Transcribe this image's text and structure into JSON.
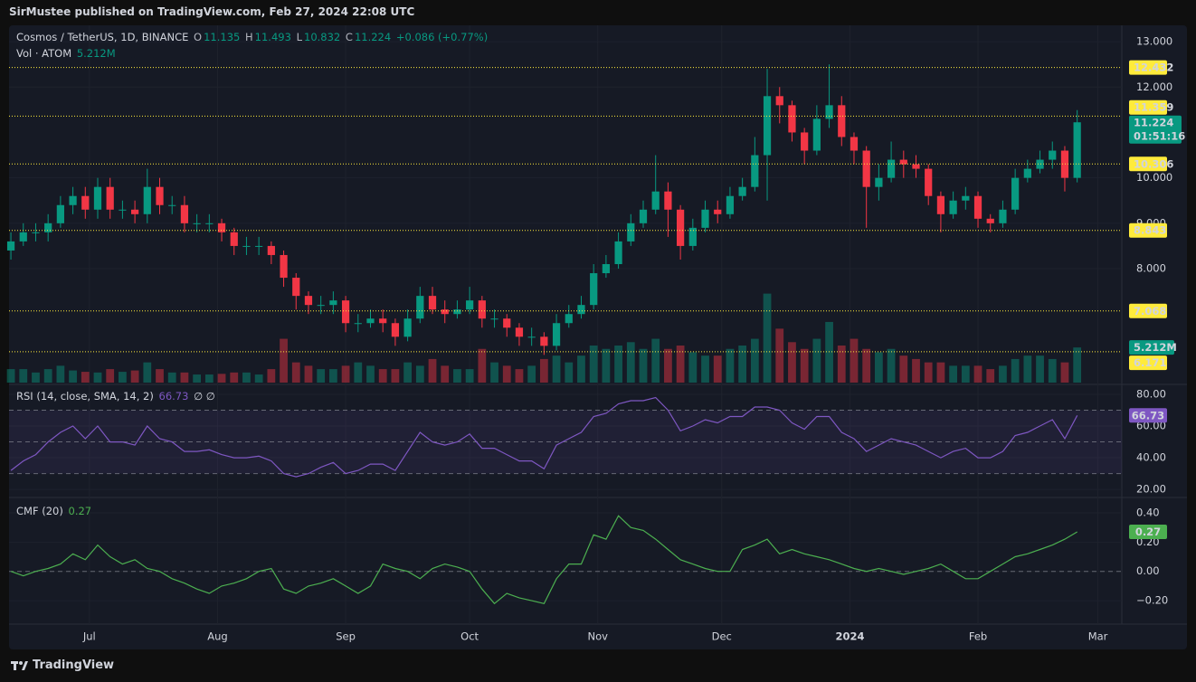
{
  "header": {
    "published": "SirMustee published on TradingView.com, Feb 27, 2024 22:08 UTC"
  },
  "footer": "TradingView",
  "chart_data": [
    {
      "type": "candlestick",
      "legend": {
        "symbol": "Cosmos / TetherUS, 1D, BINANCE",
        "o_label": "O",
        "open": 11.135,
        "h_label": "H",
        "high": 11.493,
        "l_label": "L",
        "low": 10.832,
        "c_label": "C",
        "close": 11.224,
        "change": "+0.086 (+0.77%)",
        "volume_title": "Vol · ATOM",
        "volume_label": "5.212M"
      },
      "countdown": "01:51:16",
      "up_color": "#089981",
      "down_color": "#f23645",
      "level_color": "#ffeb3b",
      "grid": true,
      "xlim": [
        -0.15,
        89.6
      ],
      "xticks": [
        {
          "value": 6.33,
          "label": "Jul"
        },
        {
          "value": 16.67,
          "label": "Aug"
        },
        {
          "value": 27,
          "label": "Sep"
        },
        {
          "value": 37,
          "label": "Oct"
        },
        {
          "value": 47.33,
          "label": "Nov"
        },
        {
          "value": 57.33,
          "label": "Dec"
        },
        {
          "value": 67.67,
          "label": "2024"
        },
        {
          "value": 78,
          "label": "Feb"
        },
        {
          "value": 87.67,
          "label": "Mar"
        }
      ],
      "ylim": [
        5.45,
        13.36
      ],
      "yticks": [
        {
          "value": 13,
          "label": "13.000"
        },
        {
          "value": 12,
          "label": "12.000"
        },
        {
          "value": 10,
          "label": "10.000"
        },
        {
          "value": 9,
          "label": "9.000"
        },
        {
          "value": 8,
          "label": "8.000"
        }
      ],
      "levels": [
        12.432,
        11.359,
        10.306,
        8.843,
        7.068,
        6.171
      ],
      "volume_ylim": [
        0,
        53
      ],
      "open": [
        8.4,
        8.6,
        8.8,
        8.8,
        9.0,
        9.4,
        9.6,
        9.3,
        9.8,
        9.3,
        9.3,
        9.2,
        9.8,
        9.4,
        9.4,
        9.0,
        9.0,
        9.0,
        8.8,
        8.5,
        8.5,
        8.5,
        8.3,
        7.8,
        7.4,
        7.2,
        7.2,
        7.3,
        6.8,
        6.8,
        6.9,
        6.8,
        6.5,
        6.9,
        7.4,
        7.1,
        7.0,
        7.1,
        7.3,
        6.9,
        6.9,
        6.7,
        6.5,
        6.5,
        6.3,
        6.8,
        7.0,
        7.2,
        7.9,
        8.1,
        8.6,
        9.0,
        9.3,
        9.7,
        9.3,
        8.5,
        8.9,
        9.3,
        9.2,
        9.6,
        9.8,
        10.5,
        11.8,
        11.6,
        11.0,
        10.6,
        11.3,
        11.6,
        10.9,
        10.6,
        9.8,
        10.0,
        10.4,
        10.3,
        10.2,
        9.6,
        9.2,
        9.5,
        9.6,
        9.1,
        9.0,
        9.3,
        10.0,
        10.2,
        10.4,
        10.6,
        10.0
      ],
      "high": [
        8.8,
        9.0,
        9.0,
        9.2,
        9.6,
        9.8,
        9.8,
        10.0,
        10.0,
        9.5,
        9.5,
        10.2,
        10.0,
        9.6,
        9.6,
        9.2,
        9.2,
        9.1,
        8.9,
        8.7,
        8.7,
        8.6,
        8.4,
        7.9,
        7.5,
        7.4,
        7.5,
        7.4,
        7.0,
        7.1,
        7.1,
        6.9,
        7.1,
        7.6,
        7.6,
        7.3,
        7.3,
        7.6,
        7.4,
        7.1,
        7.0,
        6.8,
        6.7,
        6.6,
        7.0,
        7.2,
        7.4,
        8.1,
        8.3,
        8.8,
        9.2,
        9.5,
        10.5,
        9.9,
        9.4,
        9.1,
        9.5,
        9.5,
        9.8,
        10.0,
        10.9,
        12.4,
        12.0,
        11.7,
        11.1,
        11.6,
        12.5,
        11.8,
        11.0,
        10.7,
        10.3,
        10.8,
        10.6,
        10.5,
        10.3,
        9.7,
        9.7,
        9.8,
        9.7,
        9.2,
        9.5,
        10.2,
        10.4,
        10.6,
        10.8,
        10.7,
        11.493
      ],
      "low": [
        8.2,
        8.5,
        8.6,
        8.6,
        8.9,
        9.2,
        9.1,
        9.1,
        9.1,
        9.1,
        9.0,
        9.0,
        9.2,
        9.2,
        8.8,
        8.8,
        8.8,
        8.6,
        8.3,
        8.3,
        8.3,
        8.1,
        7.6,
        7.1,
        7.0,
        7.0,
        7.0,
        6.6,
        6.6,
        6.7,
        6.6,
        6.3,
        6.4,
        6.8,
        7.0,
        6.8,
        6.9,
        7.0,
        6.7,
        6.7,
        6.5,
        6.3,
        6.3,
        6.1,
        6.2,
        6.7,
        6.9,
        7.1,
        7.8,
        8.0,
        8.5,
        8.9,
        9.2,
        8.7,
        8.2,
        8.4,
        8.8,
        9.0,
        9.1,
        9.5,
        9.7,
        9.5,
        11.2,
        10.8,
        10.3,
        10.5,
        11.1,
        10.7,
        10.3,
        8.9,
        9.5,
        9.9,
        10.0,
        10.0,
        9.4,
        8.8,
        9.1,
        9.3,
        8.9,
        8.8,
        8.9,
        9.2,
        9.9,
        10.1,
        10.2,
        9.7,
        9.9
      ],
      "close": [
        8.6,
        8.8,
        8.8,
        9.0,
        9.4,
        9.6,
        9.3,
        9.8,
        9.3,
        9.3,
        9.2,
        9.8,
        9.4,
        9.4,
        9.0,
        9.0,
        9.0,
        8.8,
        8.5,
        8.5,
        8.5,
        8.3,
        7.8,
        7.4,
        7.2,
        7.2,
        7.3,
        6.8,
        6.8,
        6.9,
        6.8,
        6.5,
        6.9,
        7.4,
        7.1,
        7.0,
        7.1,
        7.3,
        6.9,
        6.9,
        6.7,
        6.5,
        6.5,
        6.3,
        6.8,
        7.0,
        7.2,
        7.9,
        8.1,
        8.6,
        9.0,
        9.3,
        9.7,
        9.3,
        8.5,
        8.9,
        9.3,
        9.2,
        9.6,
        9.8,
        10.5,
        11.8,
        11.6,
        11.0,
        10.6,
        11.3,
        11.6,
        10.9,
        10.6,
        9.8,
        10.0,
        10.4,
        10.3,
        10.2,
        9.6,
        9.2,
        9.5,
        9.6,
        9.1,
        9.0,
        9.3,
        10.0,
        10.2,
        10.4,
        10.6,
        10.0,
        11.224
      ],
      "volume": [
        2,
        2,
        1.5,
        2,
        2.5,
        1.8,
        1.6,
        1.5,
        2,
        1.6,
        1.8,
        3,
        2,
        1.5,
        1.5,
        1.2,
        1.2,
        1.3,
        1.5,
        1.5,
        1.2,
        2,
        6.5,
        3,
        2.5,
        2,
        2,
        2.5,
        3,
        2.5,
        2,
        2,
        3,
        2.5,
        3.5,
        2.5,
        2,
        2,
        5,
        3,
        2.5,
        2,
        2.5,
        3.5,
        4,
        3,
        4,
        5.5,
        5,
        5.5,
        6,
        5,
        6.5,
        5,
        5.5,
        4.5,
        4,
        4,
        5,
        5.5,
        6.5,
        13.2,
        8,
        6,
        5,
        6.5,
        9,
        5.5,
        6.5,
        5,
        4.5,
        5,
        4,
        3.5,
        3,
        3,
        2.5,
        2.5,
        2.5,
        2,
        2.5,
        3.5,
        4,
        4,
        3.5,
        3,
        5.212
      ]
    },
    {
      "type": "line",
      "title": "RSI (14, close, SMA, 14, 2)",
      "extra": "∅ ∅",
      "color": "#7e57c2",
      "ylim": [
        14.9,
        86.3
      ],
      "yticks": [
        {
          "value": 80,
          "label": "80.00"
        },
        {
          "value": 60,
          "label": "60.00"
        },
        {
          "value": 40,
          "label": "40.00"
        },
        {
          "value": 20,
          "label": "20.00"
        }
      ],
      "levels": [
        70,
        50,
        30
      ],
      "values": [
        32,
        38,
        42,
        50,
        56,
        60,
        52,
        60,
        50,
        50,
        48,
        60,
        52,
        50,
        44,
        44,
        45,
        42,
        40,
        40,
        41,
        38,
        30,
        28,
        30,
        34,
        37,
        30,
        32,
        36,
        36,
        32,
        44,
        56,
        50,
        48,
        50,
        55,
        46,
        46,
        42,
        38,
        38,
        33,
        48,
        52,
        56,
        66,
        68,
        74,
        76,
        76,
        78,
        70,
        57,
        60,
        64,
        62,
        66,
        66,
        72,
        72,
        70,
        62,
        58,
        66,
        66,
        56,
        52,
        44,
        48,
        52,
        50,
        48,
        44,
        40,
        44,
        46,
        40,
        40,
        44,
        54,
        56,
        60,
        64,
        52,
        66.73
      ]
    },
    {
      "type": "line",
      "title": "CMF (20)",
      "color": "#4caf50",
      "ylim": [
        -0.36,
        0.505
      ],
      "yticks": [
        {
          "value": 0.4,
          "label": "0.40"
        },
        {
          "value": 0.2,
          "label": "0.20"
        },
        {
          "value": 0,
          "label": "0.00"
        },
        {
          "value": -0.2,
          "label": "−0.20"
        }
      ],
      "levels": [
        0
      ],
      "values": [
        0.0,
        -0.03,
        0.0,
        0.02,
        0.05,
        0.12,
        0.08,
        0.18,
        0.1,
        0.05,
        0.08,
        0.02,
        0.0,
        -0.05,
        -0.08,
        -0.12,
        -0.15,
        -0.1,
        -0.08,
        -0.05,
        0.0,
        0.02,
        -0.12,
        -0.15,
        -0.1,
        -0.08,
        -0.05,
        -0.1,
        -0.15,
        -0.1,
        0.05,
        0.02,
        0.0,
        -0.05,
        0.02,
        0.05,
        0.03,
        0.0,
        -0.12,
        -0.22,
        -0.15,
        -0.18,
        -0.2,
        -0.22,
        -0.05,
        0.05,
        0.05,
        0.25,
        0.22,
        0.38,
        0.3,
        0.28,
        0.22,
        0.15,
        0.08,
        0.05,
        0.02,
        0.0,
        0.0,
        0.15,
        0.18,
        0.22,
        0.12,
        0.15,
        0.12,
        0.1,
        0.08,
        0.05,
        0.02,
        0.0,
        0.02,
        0.0,
        -0.02,
        0.0,
        0.02,
        0.05,
        0.0,
        -0.05,
        -0.05,
        0.0,
        0.05,
        0.1,
        0.12,
        0.15,
        0.18,
        0.22,
        0.27
      ]
    }
  ]
}
